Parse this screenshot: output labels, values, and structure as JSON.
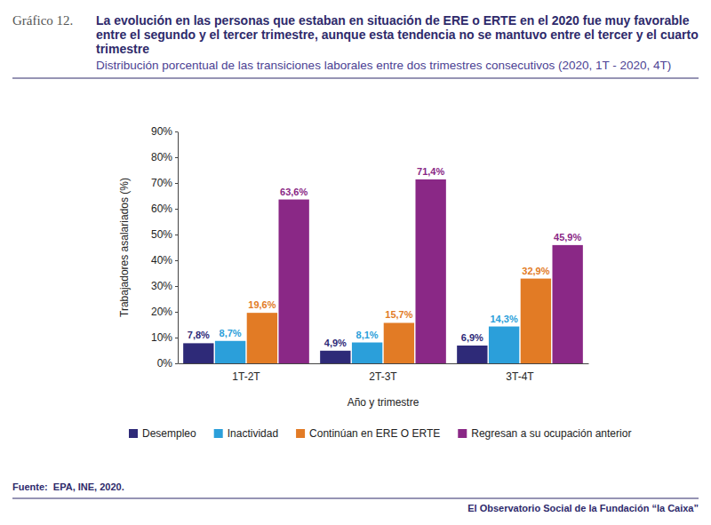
{
  "chart_data": {
    "type": "bar",
    "figure_number": "Gráfico 12.",
    "title": "La evolución en las personas que estaban en situación de ERE o ERTE en el 2020 fue muy favorable entre el segundo y el tercer trimestre, aunque esta tendencia no se mantuvo entre el tercer y el cuarto trimestre",
    "subtitle": "Distribución porcentual de las transiciones laborales entre dos trimestres consecutivos (2020, 1T - 2020, 4T)",
    "x_label": "Año y trimestre",
    "y_label": "Trabajadores asalariados (%)",
    "categories": [
      "1T-2T",
      "2T-3T",
      "3T-4T"
    ],
    "series": [
      {
        "name": "Desempleo",
        "color": "#2e2a78",
        "values": [
          7.8,
          4.9,
          6.9
        ],
        "value_labels": [
          "7,8%",
          "4,9%",
          "6,9%"
        ]
      },
      {
        "name": "Inactividad",
        "color": "#2b9fda",
        "values": [
          8.7,
          8.1,
          14.3
        ],
        "value_labels": [
          "8,7%",
          "8,1%",
          "14,3%"
        ]
      },
      {
        "name": "Continúan en ERE O ERTE",
        "color": "#e27b25",
        "values": [
          19.6,
          15.7,
          32.9
        ],
        "value_labels": [
          "19,6%",
          "15,7%",
          "32,9%"
        ]
      },
      {
        "name": "Regresan a su ocupación anterior",
        "color": "#8a2886",
        "values": [
          63.6,
          71.4,
          45.9
        ],
        "value_labels": [
          "63,6%",
          "71,4%",
          "45,9%"
        ]
      }
    ],
    "ylim": [
      0,
      90
    ],
    "yticks": [
      {
        "value": 0,
        "label": "0%"
      },
      {
        "value": 10,
        "label": "10%"
      },
      {
        "value": 20,
        "label": "20%"
      },
      {
        "value": 30,
        "label": "30%"
      },
      {
        "value": 40,
        "label": "40%"
      },
      {
        "value": 50,
        "label": "50%"
      },
      {
        "value": 60,
        "label": "60%"
      },
      {
        "value": 70,
        "label": "70%"
      },
      {
        "value": 80,
        "label": "80%"
      },
      {
        "value": 90,
        "label": "90%"
      }
    ],
    "grid": false,
    "data_labels": true,
    "legend": "bottom",
    "source": "Fuente:  EPA, INE, 2020.",
    "footer": "El Observatorio Social de la Fundación “la Caixa”"
  }
}
